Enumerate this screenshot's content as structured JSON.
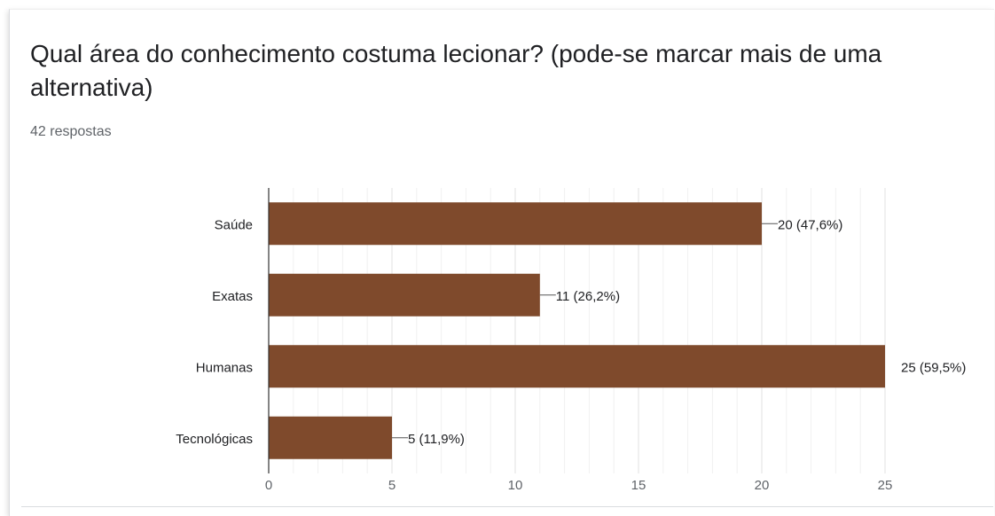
{
  "question": {
    "title": "Qual área do conhecimento costuma lecionar? (pode-se marcar mais de uma alternativa)",
    "responses_label": "42 respostas"
  },
  "colors": {
    "bar": "#7f4a2c",
    "grid": "#ececec",
    "axis": "#333333",
    "text": "#202124",
    "muted": "#5f6368"
  },
  "chart_data": {
    "type": "bar",
    "orientation": "horizontal",
    "categories": [
      "Saúde",
      "Exatas",
      "Humanas",
      "Tecnológicas"
    ],
    "values": [
      20,
      11,
      25,
      5
    ],
    "data_labels": [
      "20 (47,6%)",
      "11 (26,2%)",
      "25 (59,5%)",
      "5 (11,9%)"
    ],
    "xlim": [
      0,
      25
    ],
    "xticks": [
      "0",
      "5",
      "10",
      "15",
      "20",
      "25"
    ],
    "title": "",
    "xlabel": "",
    "ylabel": "",
    "grid": true,
    "legend": "none"
  }
}
